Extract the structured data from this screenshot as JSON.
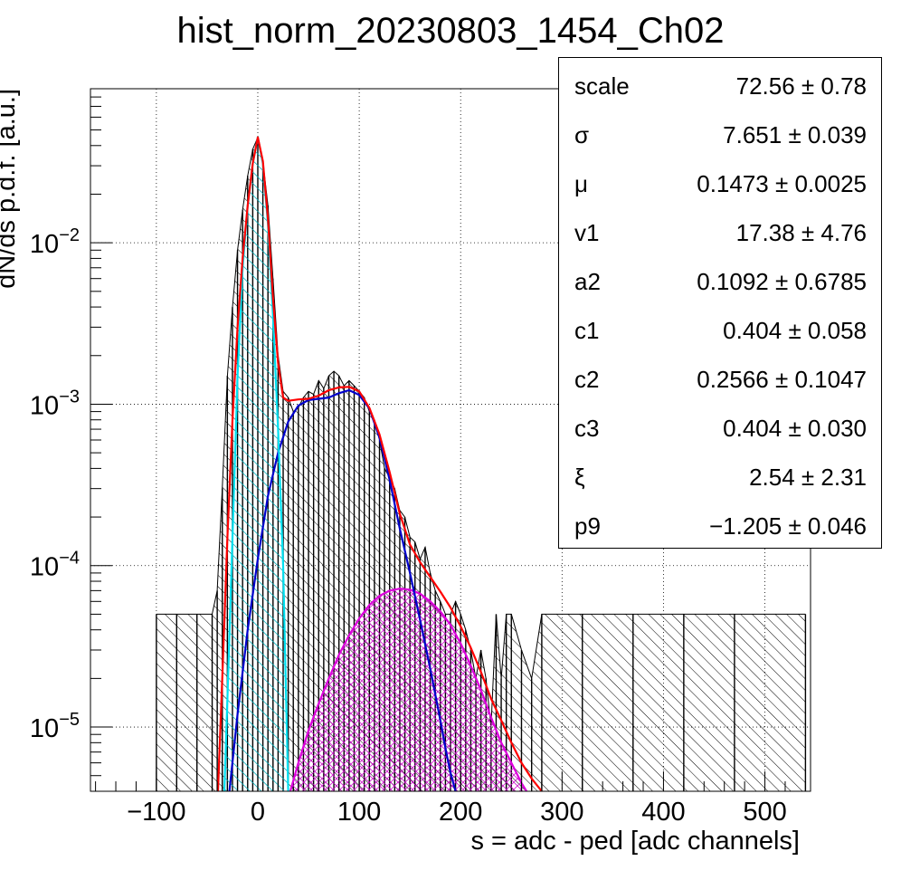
{
  "chart_data": {
    "type": "histogram",
    "title": "hist_norm_20230803_1454_Ch02",
    "xlabel": "s = adc - ped [adc channels]",
    "ylabel": "dN/ds p.d.f. [a.u.]",
    "xlim": [
      -165,
      545
    ],
    "ylim": [
      4e-06,
      0.09
    ],
    "yscale": "log",
    "grid": true,
    "xticks": [
      -100,
      0,
      100,
      200,
      300,
      400,
      500
    ],
    "xtick_labels": [
      "−100",
      "0",
      "100",
      "200",
      "300",
      "400",
      "500"
    ],
    "yticks": [
      {
        "value": 0.01,
        "label": "10",
        "exp": "−2"
      },
      {
        "value": 0.001,
        "label": "10",
        "exp": "−3"
      },
      {
        "value": 0.0001,
        "label": "10",
        "exp": "−4"
      },
      {
        "value": 1e-05,
        "label": "10",
        "exp": "−5"
      }
    ],
    "series": [
      {
        "kind": "histogram",
        "color": "#000000",
        "x": [
          -100,
          -80,
          -60,
          -45,
          -40,
          -35,
          -30,
          -25,
          -20,
          -15,
          -10,
          -5,
          0,
          5,
          10,
          15,
          20,
          25,
          30,
          35,
          40,
          45,
          50,
          55,
          60,
          65,
          70,
          75,
          80,
          85,
          90,
          95,
          100,
          105,
          110,
          115,
          120,
          125,
          130,
          135,
          140,
          145,
          150,
          155,
          160,
          165,
          170,
          175,
          180,
          185,
          190,
          195,
          200,
          205,
          210,
          215,
          220,
          225,
          230,
          235,
          240,
          245,
          250,
          260,
          270,
          280,
          320,
          370,
          420,
          470,
          540
        ],
        "values": [
          5e-05,
          5e-05,
          5e-05,
          5e-05,
          7e-05,
          0.0003,
          0.0015,
          0.004,
          0.009,
          0.016,
          0.026,
          0.038,
          0.045,
          0.032,
          0.017,
          0.006,
          0.002,
          0.0012,
          0.0011,
          0.0009,
          0.00095,
          0.0011,
          0.0012,
          0.00115,
          0.0014,
          0.00125,
          0.0015,
          0.0016,
          0.0015,
          0.0013,
          0.0014,
          0.0013,
          0.0012,
          0.0011,
          0.0009,
          0.0008,
          0.0006,
          0.0004,
          0.00035,
          0.0003,
          0.00022,
          0.0002,
          0.00015,
          0.00014,
          0.00011,
          0.00013,
          9e-05,
          7e-05,
          6e-05,
          5e-05,
          5e-05,
          6e-05,
          5e-05,
          4e-05,
          3e-05,
          2e-05,
          3e-05,
          2e-05,
          1e-05,
          5e-05,
          2e-05,
          5e-05,
          5e-05,
          3e-05,
          2e-05,
          5e-05,
          5e-05,
          5e-05,
          5e-05,
          5e-05,
          5e-05
        ]
      },
      {
        "kind": "fit-total",
        "color": "#ff0000",
        "x": [
          -40,
          -35,
          -30,
          -25,
          -20,
          -15,
          -10,
          -5,
          0,
          5,
          10,
          15,
          20,
          25,
          30,
          40,
          50,
          60,
          70,
          80,
          90,
          100,
          110,
          120,
          130,
          140,
          150,
          160,
          170,
          180,
          190,
          200,
          210,
          220,
          230,
          240,
          250,
          260,
          270,
          280
        ],
        "values": [
          3e-06,
          2e-05,
          0.00015,
          0.0008,
          0.003,
          0.008,
          0.017,
          0.031,
          0.045,
          0.032,
          0.014,
          0.0045,
          0.0018,
          0.0011,
          0.00105,
          0.00107,
          0.00108,
          0.00113,
          0.00122,
          0.00127,
          0.00128,
          0.0012,
          0.00095,
          0.00065,
          0.00038,
          0.00021,
          0.000135,
          0.000105,
          8.5e-05,
          6.9e-05,
          5.5e-05,
          4.2e-05,
          3.1e-05,
          2.2e-05,
          1.5e-05,
          1.1e-05,
          8e-06,
          6e-06,
          4.8e-06,
          4e-06
        ]
      },
      {
        "kind": "pedestal",
        "color": "#00e0f0",
        "x": [
          -33,
          -30,
          -25,
          -20,
          -15,
          -10,
          -5,
          0,
          5,
          10,
          15,
          20,
          25,
          30
        ],
        "values": [
          4e-06,
          1.5e-05,
          0.00015,
          0.0015,
          0.007,
          0.017,
          0.031,
          0.045,
          0.031,
          0.013,
          0.0035,
          0.0007,
          0.0001,
          4e-06
        ]
      },
      {
        "kind": "first-peak",
        "color": "#0000cc",
        "x": [
          -28,
          -20,
          -10,
          0,
          10,
          20,
          30,
          40,
          50,
          60,
          70,
          80,
          90,
          100,
          110,
          120,
          130,
          140,
          150,
          160,
          170,
          180,
          185,
          190,
          195
        ],
        "values": [
          4e-06,
          1.2e-05,
          4e-05,
          0.00011,
          0.00027,
          0.0005,
          0.00078,
          0.00098,
          0.00106,
          0.00108,
          0.0011,
          0.00117,
          0.00122,
          0.00114,
          0.00094,
          0.00062,
          0.00034,
          0.00017,
          9e-05,
          4.6e-05,
          2.3e-05,
          1.1e-05,
          7.4e-06,
          5.2e-06,
          4e-06
        ]
      },
      {
        "kind": "second-peak",
        "color": "#dd00dd",
        "x": [
          32,
          40,
          50,
          60,
          70,
          80,
          90,
          100,
          110,
          120,
          130,
          140,
          150,
          160,
          170,
          180,
          190,
          200,
          210,
          220,
          230,
          240,
          250,
          260,
          265
        ],
        "values": [
          4e-06,
          6e-06,
          9.5e-06,
          1.4e-05,
          2e-05,
          2.8e-05,
          3.7e-05,
          4.7e-05,
          5.7e-05,
          6.5e-05,
          7e-05,
          7.2e-05,
          7.1e-05,
          6.7e-05,
          6e-05,
          5.2e-05,
          4.3e-05,
          3.3e-05,
          2.4e-05,
          1.7e-05,
          1.15e-05,
          8e-06,
          6e-06,
          4.5e-06,
          4e-06
        ]
      }
    ]
  },
  "stats": [
    {
      "name": "scale",
      "value": "72.56 ± 0.78"
    },
    {
      "name": "σ",
      "value": "7.651 ± 0.039"
    },
    {
      "name": "μ",
      "value": "0.1473 ± 0.0025"
    },
    {
      "name": "v1",
      "value": "17.38 ± 4.76"
    },
    {
      "name": "a2",
      "value": "0.1092 ± 0.6785"
    },
    {
      "name": "c1",
      "value": "0.404 ± 0.058"
    },
    {
      "name": "c2",
      "value": "0.2566 ± 0.1047"
    },
    {
      "name": "c3",
      "value": "0.404 ± 0.030"
    },
    {
      "name": "ξ",
      "value": "2.54 ± 2.31"
    },
    {
      "name": "p9",
      "value": "−1.205 ± 0.046"
    }
  ]
}
